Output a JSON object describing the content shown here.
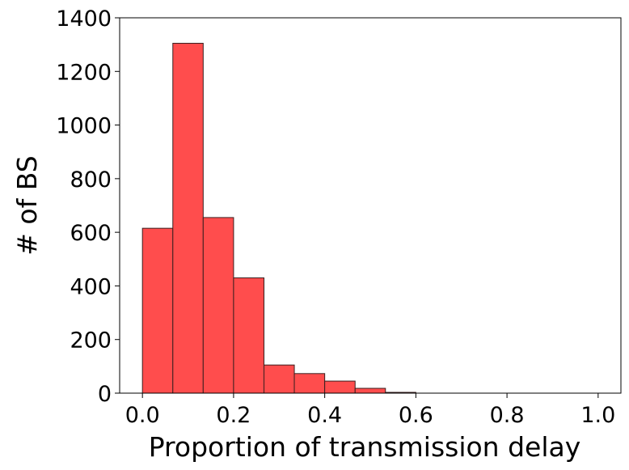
{
  "chart_data": {
    "type": "bar",
    "title": "",
    "xlabel": "Proportion of transmission delay",
    "ylabel": "# of BS",
    "xlim": [
      -0.05,
      1.05
    ],
    "ylim": [
      0,
      1400
    ],
    "xticks": [
      0.0,
      0.2,
      0.4,
      0.6,
      0.8,
      1.0
    ],
    "xtick_labels": [
      "0.0",
      "0.2",
      "0.4",
      "0.6",
      "0.8",
      "1.0"
    ],
    "yticks": [
      0,
      200,
      400,
      600,
      800,
      1000,
      1200,
      1400
    ],
    "ytick_labels": [
      "0",
      "200",
      "400",
      "600",
      "800",
      "1000",
      "1200",
      "1400"
    ],
    "bins": [
      {
        "x0": 0.0,
        "x1": 0.0667,
        "count": 615
      },
      {
        "x0": 0.0667,
        "x1": 0.1333,
        "count": 1305
      },
      {
        "x0": 0.1333,
        "x1": 0.2,
        "count": 655
      },
      {
        "x0": 0.2,
        "x1": 0.2667,
        "count": 430
      },
      {
        "x0": 0.2667,
        "x1": 0.3333,
        "count": 105
      },
      {
        "x0": 0.3333,
        "x1": 0.4,
        "count": 73
      },
      {
        "x0": 0.4,
        "x1": 0.4667,
        "count": 45
      },
      {
        "x0": 0.4667,
        "x1": 0.5333,
        "count": 18
      },
      {
        "x0": 0.5333,
        "x1": 0.6,
        "count": 3
      },
      {
        "x0": 0.6,
        "x1": 0.6667,
        "count": 0
      },
      {
        "x0": 0.6667,
        "x1": 0.7333,
        "count": 0
      },
      {
        "x0": 0.7333,
        "x1": 0.8,
        "count": 0
      },
      {
        "x0": 0.8,
        "x1": 0.8667,
        "count": 0
      },
      {
        "x0": 0.8667,
        "x1": 0.9333,
        "count": 0
      },
      {
        "x0": 0.9333,
        "x1": 1.0,
        "count": 0
      }
    ],
    "bar_color": "#ff4d4d",
    "edge_color": "#3a1f1f",
    "grid": false,
    "legend": "none"
  }
}
